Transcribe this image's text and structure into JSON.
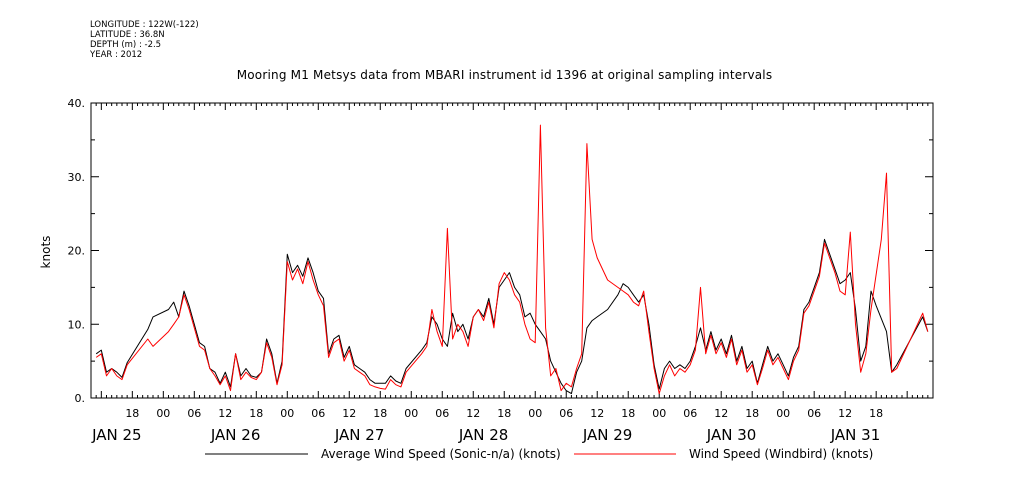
{
  "meta": {
    "longitude": "LONGITUDE : 122W(-122)",
    "latitude": "LATITUDE : 36.8N",
    "depth": "DEPTH (m) : -2.5",
    "year": "YEAR : 2012"
  },
  "chart_data": {
    "type": "line",
    "title": "Mooring M1 Metsys data from MBARI instrument id 1396 at original sampling intervals",
    "xlabel": "",
    "ylabel": "knots",
    "xlim": [
      -8,
      155
    ],
    "ylim": [
      0,
      40
    ],
    "yticks": [
      0,
      10,
      20,
      30,
      40
    ],
    "ytick_labels": [
      "0.",
      "10.",
      "20.",
      "30.",
      "40."
    ],
    "hour_ticks": [
      {
        "t": 0,
        "label": "18"
      },
      {
        "t": 6,
        "label": "00"
      },
      {
        "t": 12,
        "label": "06"
      },
      {
        "t": 18,
        "label": "12"
      },
      {
        "t": 24,
        "label": "18"
      },
      {
        "t": 30,
        "label": "00"
      },
      {
        "t": 36,
        "label": "06"
      },
      {
        "t": 42,
        "label": "12"
      },
      {
        "t": 48,
        "label": "18"
      },
      {
        "t": 54,
        "label": "00"
      },
      {
        "t": 60,
        "label": "06"
      },
      {
        "t": 66,
        "label": "12"
      },
      {
        "t": 72,
        "label": "18"
      },
      {
        "t": 78,
        "label": "00"
      },
      {
        "t": 84,
        "label": "06"
      },
      {
        "t": 90,
        "label": "12"
      },
      {
        "t": 96,
        "label": "18"
      },
      {
        "t": 102,
        "label": "00"
      },
      {
        "t": 108,
        "label": "06"
      },
      {
        "t": 114,
        "label": "12"
      },
      {
        "t": 120,
        "label": "18"
      },
      {
        "t": 126,
        "label": "00"
      },
      {
        "t": 132,
        "label": "06"
      },
      {
        "t": 138,
        "label": "12"
      },
      {
        "t": 144,
        "label": "18"
      }
    ],
    "day_labels": [
      {
        "t": -3,
        "label": "JAN 25"
      },
      {
        "t": 20,
        "label": "JAN 26"
      },
      {
        "t": 44,
        "label": "JAN 27"
      },
      {
        "t": 68,
        "label": "JAN 28"
      },
      {
        "t": 92,
        "label": "JAN 29"
      },
      {
        "t": 116,
        "label": "JAN 30"
      },
      {
        "t": 140,
        "label": "JAN 31"
      }
    ],
    "series": [
      {
        "name": "Average Wind Speed (Sonic-n/a) (knots)",
        "color": "#000000",
        "points": [
          [
            -7,
            6
          ],
          [
            -6,
            6.5
          ],
          [
            -5,
            3.5
          ],
          [
            -4,
            4
          ],
          [
            -3,
            3.5
          ],
          [
            -2,
            2.8
          ],
          [
            -1,
            4.8
          ],
          [
            3,
            9.3
          ],
          [
            4,
            11
          ],
          [
            7,
            12
          ],
          [
            8,
            13
          ],
          [
            9,
            11
          ],
          [
            10,
            14.5
          ],
          [
            11,
            12.5
          ],
          [
            12,
            10
          ],
          [
            13,
            7.5
          ],
          [
            14,
            7
          ],
          [
            15,
            4
          ],
          [
            16,
            3.5
          ],
          [
            17,
            2
          ],
          [
            18,
            3.5
          ],
          [
            19,
            1.5
          ],
          [
            20,
            6
          ],
          [
            21,
            3
          ],
          [
            22,
            4
          ],
          [
            23,
            3
          ],
          [
            24,
            2.8
          ],
          [
            25,
            3.5
          ],
          [
            26,
            8
          ],
          [
            27,
            6
          ],
          [
            28,
            2
          ],
          [
            29,
            5
          ],
          [
            30,
            19.5
          ],
          [
            31,
            17
          ],
          [
            32,
            18
          ],
          [
            33,
            16.5
          ],
          [
            34,
            19
          ],
          [
            35,
            17
          ],
          [
            36,
            14.5
          ],
          [
            37,
            13.5
          ],
          [
            38,
            6
          ],
          [
            39,
            8
          ],
          [
            40,
            8.5
          ],
          [
            41,
            5.5
          ],
          [
            42,
            7
          ],
          [
            43,
            4.5
          ],
          [
            44,
            4
          ],
          [
            45,
            3.5
          ],
          [
            46,
            2.5
          ],
          [
            47,
            2
          ],
          [
            48,
            2
          ],
          [
            49,
            2
          ],
          [
            50,
            3
          ],
          [
            51,
            2.3
          ],
          [
            52,
            2
          ],
          [
            53,
            4
          ],
          [
            56,
            6.5
          ],
          [
            57,
            7.5
          ],
          [
            58,
            11
          ],
          [
            59,
            10
          ],
          [
            60,
            8
          ],
          [
            61,
            7
          ],
          [
            62,
            11.5
          ],
          [
            63,
            9
          ],
          [
            64,
            10
          ],
          [
            65,
            8
          ],
          [
            66,
            11
          ],
          [
            67,
            12
          ],
          [
            68,
            11
          ],
          [
            69,
            13.5
          ],
          [
            70,
            10
          ],
          [
            71,
            15
          ],
          [
            72,
            16
          ],
          [
            73,
            17
          ],
          [
            74,
            15
          ],
          [
            75,
            14
          ],
          [
            76,
            11
          ],
          [
            77,
            11.5
          ],
          [
            78,
            10
          ],
          [
            79,
            9
          ],
          [
            80,
            8
          ],
          [
            81,
            5
          ],
          [
            82,
            3.5
          ],
          [
            83,
            2
          ],
          [
            84,
            1
          ],
          [
            85,
            0.6
          ],
          [
            86,
            3.5
          ],
          [
            87,
            5
          ],
          [
            88,
            9.5
          ],
          [
            89,
            10.5
          ],
          [
            90,
            11
          ],
          [
            92,
            12
          ],
          [
            94,
            14
          ],
          [
            95,
            15.5
          ],
          [
            96,
            15
          ],
          [
            97,
            14
          ],
          [
            98,
            13
          ],
          [
            99,
            14
          ],
          [
            100,
            10
          ],
          [
            101,
            4.5
          ],
          [
            102,
            1.2
          ],
          [
            103,
            4
          ],
          [
            104,
            5
          ],
          [
            105,
            4
          ],
          [
            106,
            4.5
          ],
          [
            107,
            4
          ],
          [
            108,
            5
          ],
          [
            109,
            7
          ],
          [
            110,
            9.5
          ],
          [
            111,
            6.5
          ],
          [
            112,
            9
          ],
          [
            113,
            6.5
          ],
          [
            114,
            8
          ],
          [
            115,
            6
          ],
          [
            116,
            8.5
          ],
          [
            117,
            5
          ],
          [
            118,
            7
          ],
          [
            119,
            4
          ],
          [
            120,
            5
          ],
          [
            121,
            2
          ],
          [
            122,
            4.5
          ],
          [
            123,
            7
          ],
          [
            124,
            5
          ],
          [
            125,
            6
          ],
          [
            126,
            4.5
          ],
          [
            127,
            3
          ],
          [
            128,
            5.5
          ],
          [
            129,
            7
          ],
          [
            130,
            12
          ],
          [
            131,
            13
          ],
          [
            132,
            15
          ],
          [
            133,
            17
          ],
          [
            134,
            21.5
          ],
          [
            135,
            19.5
          ],
          [
            136,
            17.5
          ],
          [
            137,
            15.5
          ],
          [
            138,
            16
          ],
          [
            139,
            17
          ],
          [
            140,
            12
          ],
          [
            141,
            5
          ],
          [
            142,
            7
          ],
          [
            143,
            14.5
          ],
          [
            144,
            12.5
          ],
          [
            146,
            9
          ],
          [
            147,
            3.5
          ],
          [
            148,
            4.5
          ],
          [
            153,
            11
          ],
          [
            154,
            9
          ]
        ]
      },
      {
        "name": "Wind Speed (Windbird) (knots)",
        "color": "#ff0000",
        "points": [
          [
            -7,
            5.5
          ],
          [
            -6,
            6
          ],
          [
            -5,
            3
          ],
          [
            -4,
            4
          ],
          [
            -3,
            3
          ],
          [
            -2,
            2.5
          ],
          [
            -1,
            4.5
          ],
          [
            3,
            8
          ],
          [
            4,
            7
          ],
          [
            7,
            9
          ],
          [
            8,
            10
          ],
          [
            9,
            11
          ],
          [
            10,
            14
          ],
          [
            11,
            12
          ],
          [
            12,
            9.5
          ],
          [
            13,
            7
          ],
          [
            14,
            6.5
          ],
          [
            15,
            4
          ],
          [
            16,
            3
          ],
          [
            17,
            1.8
          ],
          [
            18,
            3
          ],
          [
            19,
            1
          ],
          [
            20,
            6
          ],
          [
            21,
            2.5
          ],
          [
            22,
            3.5
          ],
          [
            23,
            2.8
          ],
          [
            24,
            2.5
          ],
          [
            25,
            3.5
          ],
          [
            26,
            7.5
          ],
          [
            27,
            5.5
          ],
          [
            28,
            1.8
          ],
          [
            29,
            4.5
          ],
          [
            30,
            18.5
          ],
          [
            31,
            16
          ],
          [
            32,
            17.5
          ],
          [
            33,
            15.5
          ],
          [
            34,
            18.5
          ],
          [
            35,
            16
          ],
          [
            36,
            14
          ],
          [
            37,
            12.5
          ],
          [
            38,
            5.5
          ],
          [
            39,
            7.5
          ],
          [
            40,
            8
          ],
          [
            41,
            5
          ],
          [
            42,
            6.5
          ],
          [
            43,
            4
          ],
          [
            44,
            3.5
          ],
          [
            45,
            3
          ],
          [
            46,
            1.8
          ],
          [
            47,
            1.5
          ],
          [
            48,
            1.3
          ],
          [
            49,
            1.2
          ],
          [
            50,
            2.5
          ],
          [
            51,
            1.8
          ],
          [
            52,
            1.5
          ],
          [
            53,
            3.5
          ],
          [
            56,
            6
          ],
          [
            57,
            7
          ],
          [
            58,
            12
          ],
          [
            59,
            9
          ],
          [
            60,
            7
          ],
          [
            61,
            23
          ],
          [
            62,
            8
          ],
          [
            63,
            10
          ],
          [
            64,
            9
          ],
          [
            65,
            7
          ],
          [
            66,
            11
          ],
          [
            67,
            12
          ],
          [
            68,
            10.5
          ],
          [
            69,
            13
          ],
          [
            70,
            9.5
          ],
          [
            71,
            15.5
          ],
          [
            72,
            17
          ],
          [
            73,
            16
          ],
          [
            74,
            14
          ],
          [
            75,
            13
          ],
          [
            76,
            10
          ],
          [
            77,
            8
          ],
          [
            78,
            7.5
          ],
          [
            79,
            37
          ],
          [
            80,
            9.5
          ],
          [
            81,
            3
          ],
          [
            82,
            4
          ],
          [
            83,
            1
          ],
          [
            84,
            2
          ],
          [
            85,
            1.5
          ],
          [
            86,
            4
          ],
          [
            87,
            6
          ],
          [
            88,
            34.5
          ],
          [
            89,
            21.5
          ],
          [
            90,
            19
          ],
          [
            92,
            16
          ],
          [
            94,
            15
          ],
          [
            95,
            14.5
          ],
          [
            96,
            14
          ],
          [
            97,
            13
          ],
          [
            98,
            12.5
          ],
          [
            99,
            14.5
          ],
          [
            100,
            9
          ],
          [
            101,
            4
          ],
          [
            102,
            0.6
          ],
          [
            103,
            3
          ],
          [
            104,
            4.5
          ],
          [
            105,
            3
          ],
          [
            106,
            4
          ],
          [
            107,
            3.5
          ],
          [
            108,
            4.5
          ],
          [
            109,
            6.5
          ],
          [
            110,
            15
          ],
          [
            111,
            6
          ],
          [
            112,
            8.5
          ],
          [
            113,
            6
          ],
          [
            114,
            7.5
          ],
          [
            115,
            5.5
          ],
          [
            116,
            8
          ],
          [
            117,
            4.5
          ],
          [
            118,
            6.5
          ],
          [
            119,
            3.5
          ],
          [
            120,
            4.5
          ],
          [
            121,
            1.8
          ],
          [
            122,
            4
          ],
          [
            123,
            6.5
          ],
          [
            124,
            4.5
          ],
          [
            125,
            5.5
          ],
          [
            126,
            4
          ],
          [
            127,
            2.5
          ],
          [
            128,
            5
          ],
          [
            129,
            6.5
          ],
          [
            130,
            11.5
          ],
          [
            131,
            12.5
          ],
          [
            132,
            14.5
          ],
          [
            133,
            16.5
          ],
          [
            134,
            21
          ],
          [
            135,
            19
          ],
          [
            136,
            17
          ],
          [
            137,
            14.5
          ],
          [
            138,
            14
          ],
          [
            139,
            22.5
          ],
          [
            140,
            10
          ],
          [
            141,
            3.5
          ],
          [
            142,
            6
          ],
          [
            143,
            12
          ],
          [
            145,
            21.5
          ],
          [
            146,
            30.5
          ],
          [
            147,
            3.5
          ],
          [
            148,
            4
          ],
          [
            153,
            11.5
          ],
          [
            154,
            9
          ]
        ]
      }
    ],
    "legend": "bottom",
    "grid": false
  }
}
